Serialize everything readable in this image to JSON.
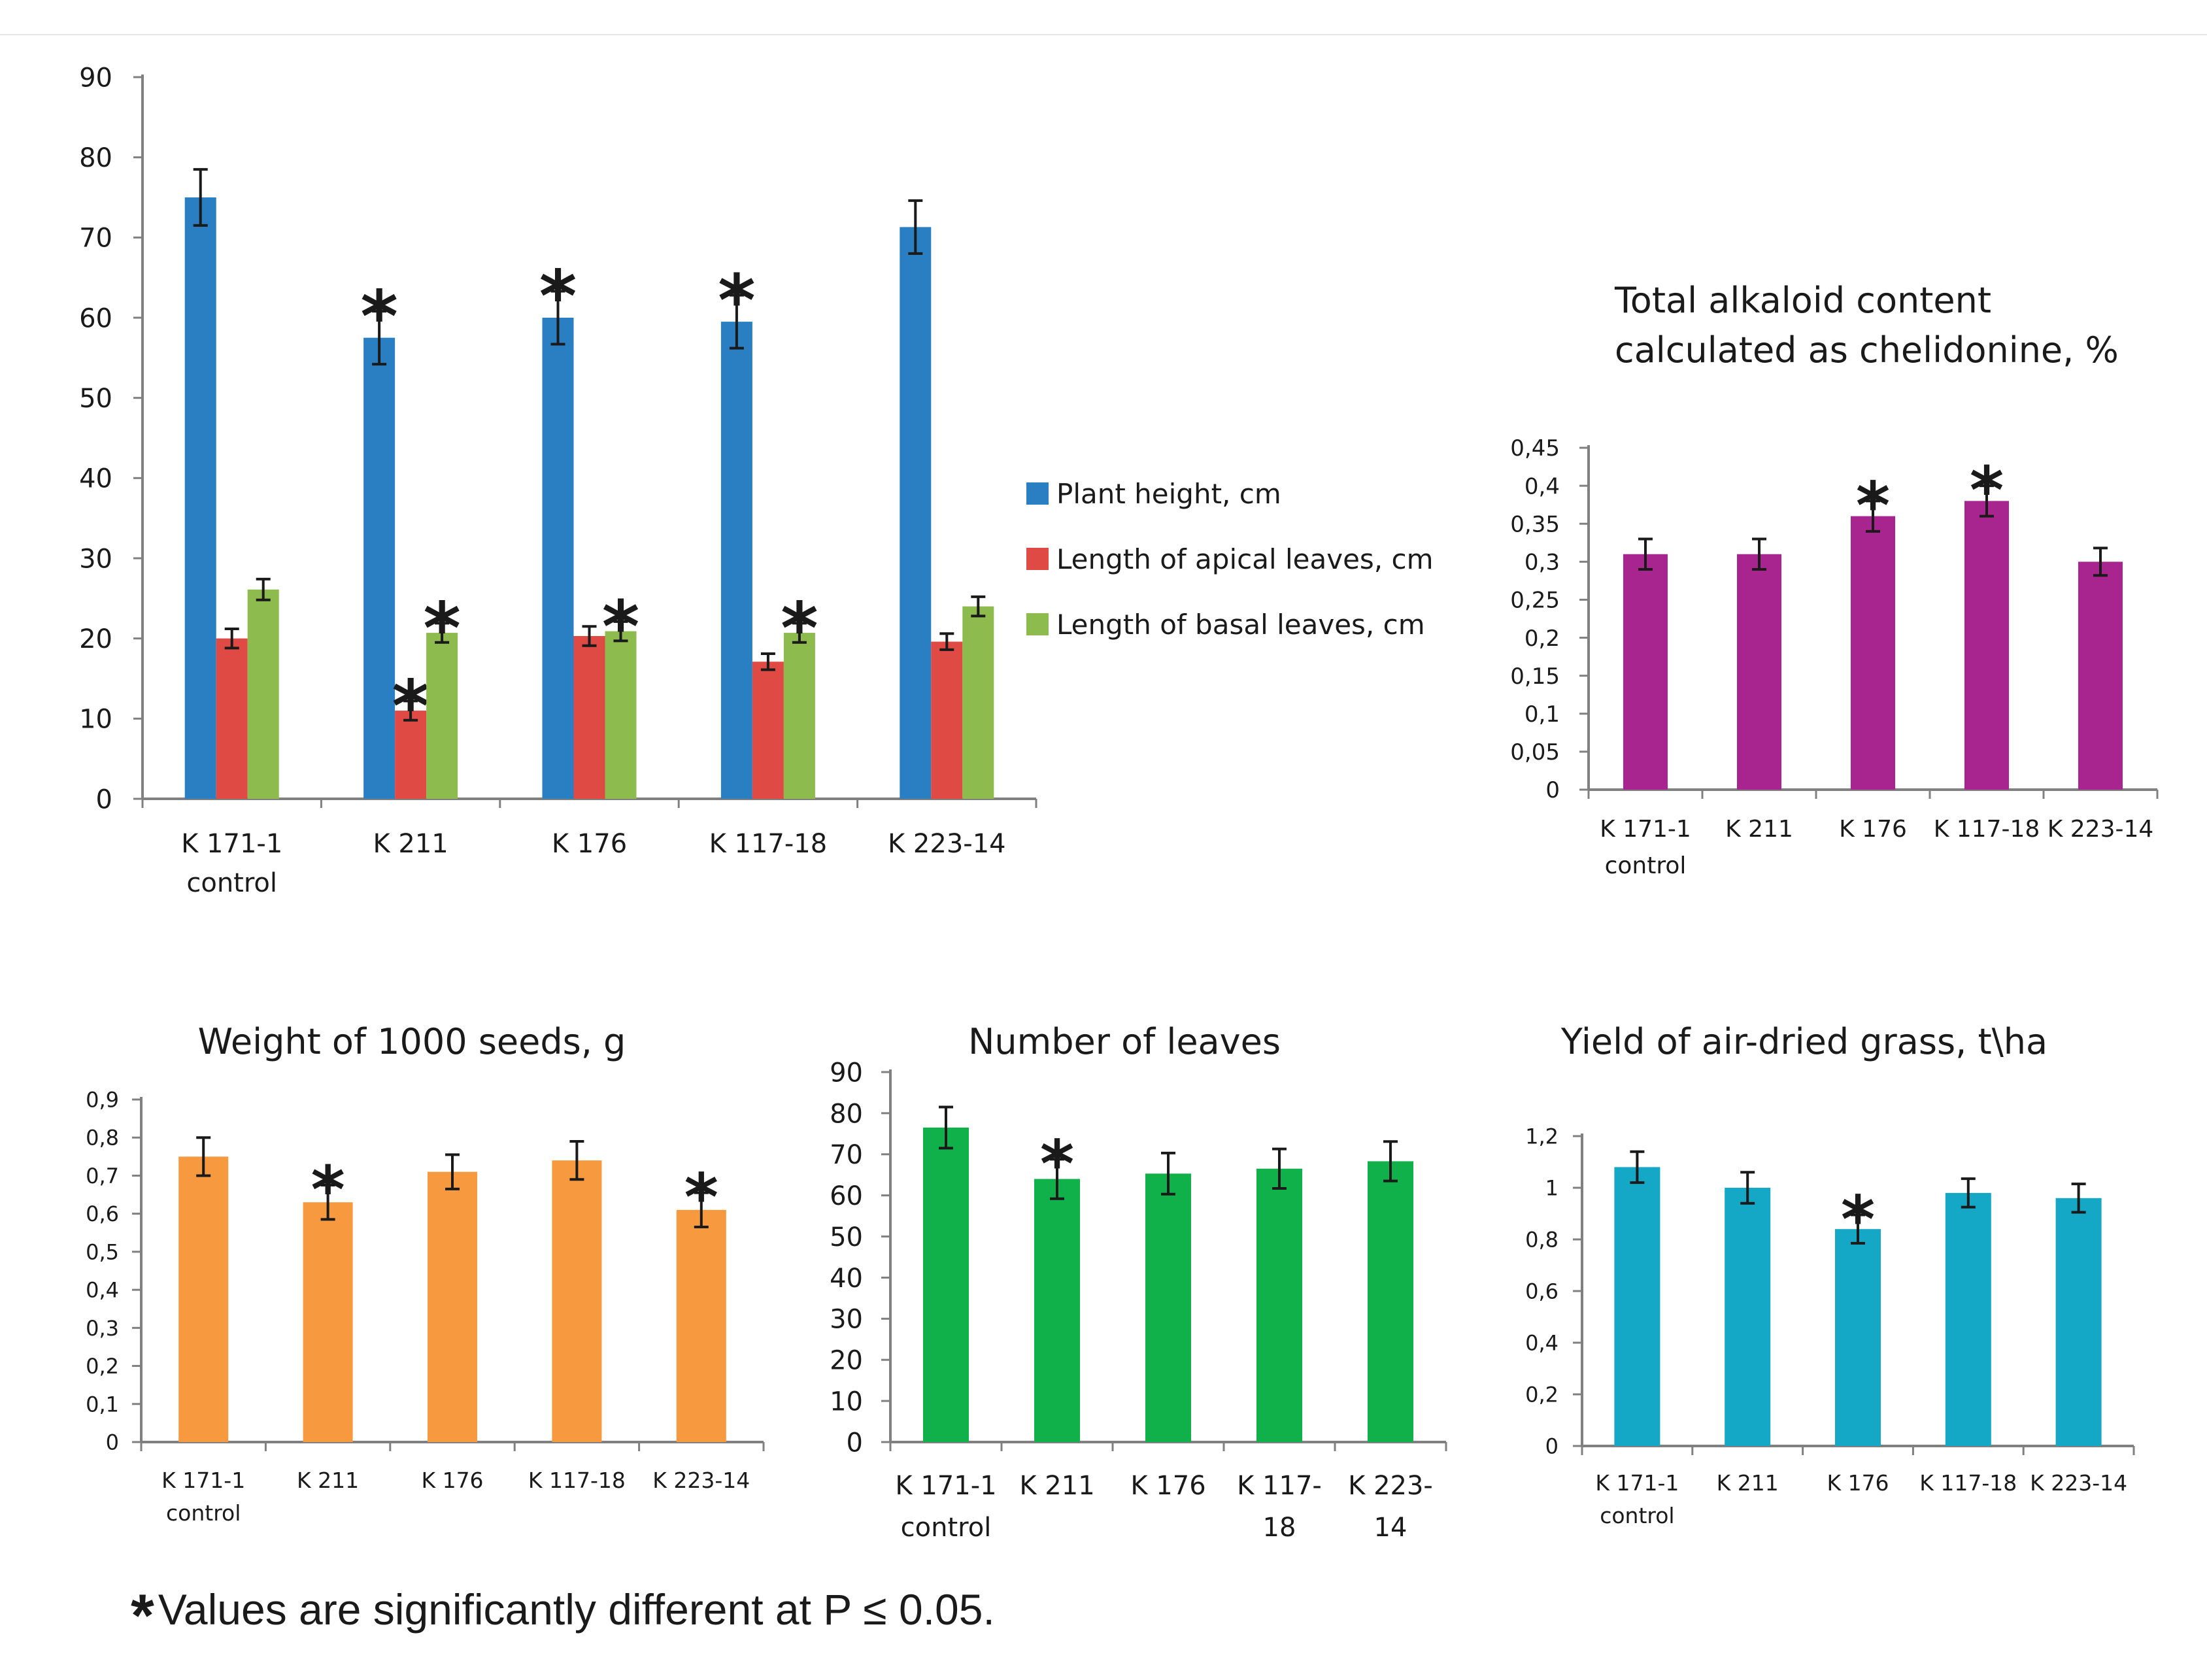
{
  "footnote": {
    "symbol": "*",
    "text": "Values are significantly different at P ≤ 0.05."
  },
  "colors": {
    "blue": "#2a7fc2",
    "red": "#df4a45",
    "green": "#8dbb4e",
    "purple": "#a8258f",
    "orange": "#f7993e",
    "bright_green": "#10b04b",
    "cyan": "#15a8c6"
  },
  "chart_data": [
    {
      "id": "morphology",
      "type": "bar",
      "title": "",
      "categories": [
        "K 171-1\ncontrol",
        "K 211",
        "K 176",
        "K 117-18",
        "K 223-14"
      ],
      "ylim": [
        0,
        90
      ],
      "yticks": [
        0,
        10,
        20,
        30,
        40,
        50,
        60,
        70,
        80,
        90
      ],
      "ytick_labels": [
        "0",
        "10",
        "20",
        "30",
        "40",
        "50",
        "60",
        "70",
        "80",
        "90"
      ],
      "legend_position": "right",
      "series": [
        {
          "name": "Plant height, cm",
          "color": "#2a7fc2",
          "values": [
            75,
            57.5,
            60,
            59.5,
            71.3
          ],
          "errors": [
            3.5,
            3.3,
            3.3,
            3.3,
            3.3
          ],
          "significant": [
            false,
            true,
            true,
            true,
            false
          ]
        },
        {
          "name": "Length of apical leaves, cm",
          "color": "#df4a45",
          "values": [
            20,
            11,
            20.3,
            17.1,
            19.6
          ],
          "errors": [
            1.2,
            1.2,
            1.2,
            1.0,
            1.0
          ],
          "significant": [
            false,
            true,
            false,
            false,
            false
          ]
        },
        {
          "name": "Length of basal leaves, cm",
          "color": "#8dbb4e",
          "values": [
            26.1,
            20.7,
            20.9,
            20.7,
            24
          ],
          "errors": [
            1.3,
            1.2,
            1.2,
            1.2,
            1.2
          ],
          "significant": [
            false,
            true,
            true,
            true,
            false
          ]
        }
      ]
    },
    {
      "id": "alkaloid",
      "type": "bar",
      "title": "Total alkaloid content\ncalculated as chelidonine, %",
      "categories": [
        "K 171-1\ncontrol",
        "K 211",
        "K 176",
        "K 117-18",
        "K 223-14"
      ],
      "ylim": [
        0,
        0.45
      ],
      "yticks": [
        0,
        0.05,
        0.1,
        0.15,
        0.2,
        0.25,
        0.3,
        0.35,
        0.4,
        0.45
      ],
      "ytick_labels": [
        "0",
        "0,05",
        "0,1",
        "0,15",
        "0,2",
        "0,25",
        "0,3",
        "0,35",
        "0,4",
        "0,45"
      ],
      "series": [
        {
          "name": "Total alkaloid content",
          "color": "#a8258f",
          "values": [
            0.31,
            0.31,
            0.36,
            0.38,
            0.3
          ],
          "errors": [
            0.02,
            0.02,
            0.02,
            0.02,
            0.018
          ],
          "significant": [
            false,
            false,
            true,
            true,
            false
          ]
        }
      ]
    },
    {
      "id": "seeds",
      "type": "bar",
      "title": "Weight of 1000 seeds, g",
      "categories": [
        "K 171-1\ncontrol",
        "K 211",
        "K 176",
        "K 117-18",
        "K 223-14"
      ],
      "ylim": [
        0,
        0.9
      ],
      "yticks": [
        0,
        0.1,
        0.2,
        0.3,
        0.4,
        0.5,
        0.6,
        0.7,
        0.8,
        0.9
      ],
      "ytick_labels": [
        "0",
        "0,1",
        "0,2",
        "0,3",
        "0,4",
        "0,5",
        "0,6",
        "0,7",
        "0,8",
        "0,9"
      ],
      "series": [
        {
          "name": "Weight of 1000 seeds, g",
          "color": "#f7993e",
          "values": [
            0.75,
            0.63,
            0.71,
            0.74,
            0.61
          ],
          "errors": [
            0.05,
            0.045,
            0.045,
            0.05,
            0.045
          ],
          "significant": [
            false,
            true,
            false,
            false,
            true
          ]
        }
      ]
    },
    {
      "id": "leaves",
      "type": "bar",
      "title": "Number of leaves",
      "categories": [
        "K 171-1\ncontrol",
        "K 211",
        "K 176",
        "K 117-\n18",
        "K 223-\n14"
      ],
      "ylim": [
        0,
        90
      ],
      "yticks": [
        0,
        10,
        20,
        30,
        40,
        50,
        60,
        70,
        80,
        90
      ],
      "ytick_labels": [
        "0",
        "10",
        "20",
        "30",
        "40",
        "50",
        "60",
        "70",
        "80",
        "90"
      ],
      "series": [
        {
          "name": "Number of leaves",
          "color": "#10b04b",
          "values": [
            76.5,
            64,
            65.3,
            66.5,
            68.3
          ],
          "errors": [
            5,
            4.8,
            5,
            4.8,
            4.8
          ],
          "significant": [
            false,
            true,
            false,
            false,
            false
          ]
        }
      ]
    },
    {
      "id": "yield",
      "type": "bar",
      "title": "Yield of air-dried grass, t\\ha",
      "categories": [
        "K 171-1\ncontrol",
        "K 211",
        "K 176",
        "K 117-18",
        "K 223-14"
      ],
      "ylim": [
        0,
        1.2
      ],
      "yticks": [
        0,
        0.2,
        0.4,
        0.6,
        0.8,
        1,
        1.2
      ],
      "ytick_labels": [
        "0",
        "0,2",
        "0,4",
        "0,6",
        "0,8",
        "1",
        "1,2"
      ],
      "series": [
        {
          "name": "Yield of air-dried grass",
          "color": "#15a8c6",
          "values": [
            1.08,
            1.0,
            0.84,
            0.98,
            0.96
          ],
          "errors": [
            0.06,
            0.06,
            0.055,
            0.055,
            0.055
          ],
          "significant": [
            false,
            false,
            true,
            false,
            false
          ]
        }
      ]
    }
  ]
}
